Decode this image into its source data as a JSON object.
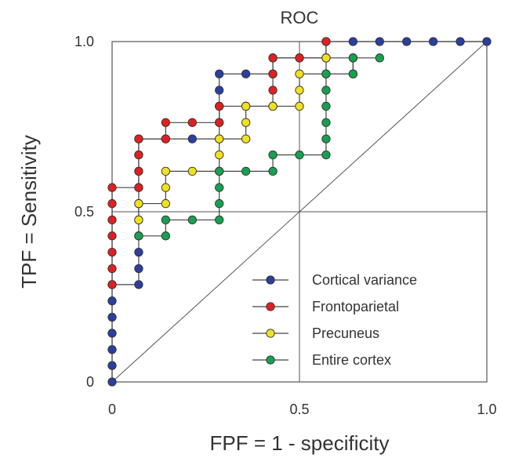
{
  "chart_data": {
    "type": "line",
    "title": "ROC",
    "xlabel": "FPF = 1 - specificity",
    "ylabel": "TPF = Sensitivity",
    "xlim": [
      0,
      1
    ],
    "ylim": [
      0,
      1
    ],
    "x_ticks": [
      "0",
      "0.5",
      "1.0"
    ],
    "y_ticks": [
      "0",
      "0.5",
      "1.0"
    ],
    "reference_lines": {
      "diagonal": true,
      "x": 0.5,
      "y": 0.5
    },
    "legend_position": "bottom-right",
    "series": [
      {
        "name": "Cortical variance",
        "color": "#2a3f9e",
        "points": [
          [
            0,
            0
          ],
          [
            0,
            0.048
          ],
          [
            0,
            0.095
          ],
          [
            0,
            0.143
          ],
          [
            0,
            0.19
          ],
          [
            0,
            0.238
          ],
          [
            0,
            0.286
          ],
          [
            0.071,
            0.286
          ],
          [
            0.071,
            0.333
          ],
          [
            0.071,
            0.381
          ],
          [
            0.071,
            0.429
          ],
          [
            0.071,
            0.476
          ],
          [
            0.071,
            0.524
          ],
          [
            0.071,
            0.571
          ],
          [
            0.071,
            0.619
          ],
          [
            0.071,
            0.667
          ],
          [
            0.071,
            0.714
          ],
          [
            0.143,
            0.714
          ],
          [
            0.214,
            0.714
          ],
          [
            0.286,
            0.714
          ],
          [
            0.286,
            0.762
          ],
          [
            0.286,
            0.81
          ],
          [
            0.286,
            0.857
          ],
          [
            0.286,
            0.905
          ],
          [
            0.357,
            0.905
          ],
          [
            0.429,
            0.905
          ],
          [
            0.429,
            0.952
          ],
          [
            0.5,
            0.952
          ],
          [
            0.571,
            0.952
          ],
          [
            0.571,
            1.0
          ],
          [
            0.643,
            1.0
          ],
          [
            0.714,
            1.0
          ],
          [
            0.786,
            1.0
          ],
          [
            0.857,
            1.0
          ],
          [
            0.929,
            1.0
          ],
          [
            1.0,
            1.0
          ]
        ]
      },
      {
        "name": "Frontoparietal",
        "color": "#e02020",
        "points": [
          [
            0,
            0.286
          ],
          [
            0,
            0.333
          ],
          [
            0,
            0.381
          ],
          [
            0,
            0.429
          ],
          [
            0,
            0.476
          ],
          [
            0,
            0.524
          ],
          [
            0,
            0.571
          ],
          [
            0.071,
            0.571
          ],
          [
            0.071,
            0.619
          ],
          [
            0.071,
            0.667
          ],
          [
            0.071,
            0.714
          ],
          [
            0.143,
            0.714
          ],
          [
            0.143,
            0.762
          ],
          [
            0.214,
            0.762
          ],
          [
            0.286,
            0.762
          ],
          [
            0.286,
            0.81
          ],
          [
            0.357,
            0.81
          ],
          [
            0.429,
            0.81
          ],
          [
            0.429,
            0.857
          ],
          [
            0.429,
            0.905
          ],
          [
            0.429,
            0.952
          ],
          [
            0.5,
            0.952
          ],
          [
            0.571,
            0.952
          ],
          [
            0.571,
            1.0
          ]
        ]
      },
      {
        "name": "Precuneus",
        "color": "#f0e020",
        "points": [
          [
            0.071,
            0.476
          ],
          [
            0.071,
            0.524
          ],
          [
            0.143,
            0.524
          ],
          [
            0.143,
            0.571
          ],
          [
            0.143,
            0.619
          ],
          [
            0.214,
            0.619
          ],
          [
            0.286,
            0.619
          ],
          [
            0.286,
            0.667
          ],
          [
            0.286,
            0.714
          ],
          [
            0.357,
            0.714
          ],
          [
            0.357,
            0.762
          ],
          [
            0.357,
            0.81
          ],
          [
            0.429,
            0.81
          ],
          [
            0.5,
            0.81
          ],
          [
            0.5,
            0.857
          ],
          [
            0.5,
            0.905
          ],
          [
            0.571,
            0.905
          ],
          [
            0.571,
            0.952
          ],
          [
            0.643,
            0.952
          ],
          [
            0.643,
            0.905
          ]
        ]
      },
      {
        "name": "Entire cortex",
        "color": "#16a050",
        "points": [
          [
            0.071,
            0.429
          ],
          [
            0.143,
            0.429
          ],
          [
            0.143,
            0.476
          ],
          [
            0.214,
            0.476
          ],
          [
            0.286,
            0.476
          ],
          [
            0.286,
            0.524
          ],
          [
            0.286,
            0.571
          ],
          [
            0.286,
            0.619
          ],
          [
            0.357,
            0.619
          ],
          [
            0.429,
            0.619
          ],
          [
            0.429,
            0.667
          ],
          [
            0.5,
            0.667
          ],
          [
            0.571,
            0.667
          ],
          [
            0.571,
            0.714
          ],
          [
            0.571,
            0.762
          ],
          [
            0.571,
            0.81
          ],
          [
            0.571,
            0.857
          ],
          [
            0.571,
            0.905
          ],
          [
            0.643,
            0.905
          ],
          [
            0.643,
            0.952
          ],
          [
            0.714,
            0.952
          ]
        ]
      }
    ]
  }
}
